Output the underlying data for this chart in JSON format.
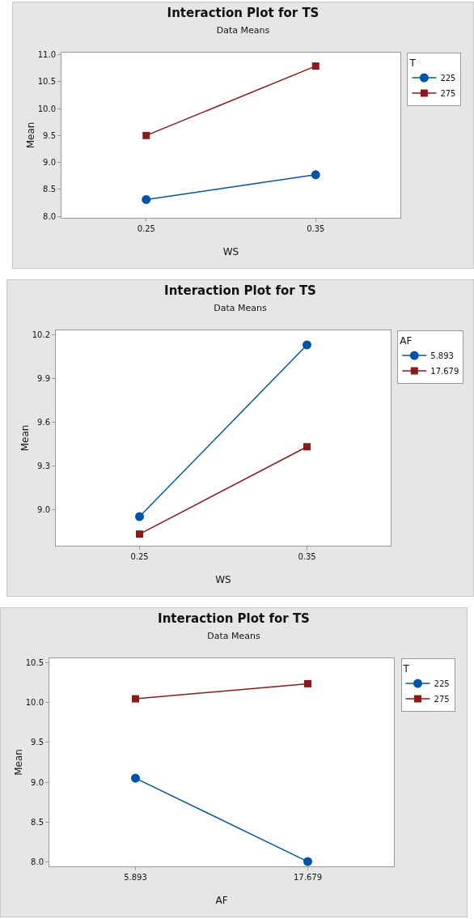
{
  "chart_data": [
    {
      "type": "line",
      "title": "Interaction Plot for TS",
      "subtitle": "Data Means",
      "xlabel": "WS",
      "ylabel": "Mean",
      "legend_title": "T",
      "categories": [
        "0.25",
        "0.35"
      ],
      "series": [
        {
          "name": "225",
          "color": "#0054a6",
          "marker": "circle",
          "values": [
            8.31,
            8.77
          ]
        },
        {
          "name": "275",
          "color": "#8b1a1a",
          "marker": "square",
          "values": [
            9.5,
            10.79
          ]
        }
      ],
      "ylim": [
        7.97,
        11.04
      ],
      "yticks": [
        {
          "value": 8,
          "label": "8.0"
        },
        8.5,
        {
          "value": 9,
          "label": "9.0"
        },
        9.5,
        {
          "value": 10,
          "label": "10.0"
        },
        10.5,
        {
          "value": 11,
          "label": "11.0"
        }
      ],
      "grid": false,
      "legend": "top right",
      "line_style": "solid"
    },
    {
      "type": "line",
      "title": "Interaction Plot for TS",
      "subtitle": "Data Means",
      "xlabel": "WS",
      "ylabel": "Mean",
      "legend_title": "AF",
      "categories": [
        "0.25",
        "0.35"
      ],
      "series": [
        {
          "name": "5.893",
          "color": "#0054a6",
          "marker": "circle",
          "values": [
            8.95,
            10.13
          ]
        },
        {
          "name": "17.679",
          "color": "#8b1a1a",
          "marker": "square",
          "values": [
            8.83,
            9.43
          ]
        }
      ],
      "ylim": [
        8.75,
        10.23
      ],
      "yticks": [
        {
          "value": 9,
          "label": "9.0"
        },
        9.3,
        9.6,
        9.9,
        10.2
      ],
      "grid": false,
      "legend": "top right",
      "line_style": "solid"
    },
    {
      "type": "line",
      "title": "Interaction Plot for TS",
      "subtitle": "Data Means",
      "xlabel": "AF",
      "ylabel": "Mean",
      "legend_title": "T",
      "categories": [
        "5.893",
        "17.679"
      ],
      "series": [
        {
          "name": "225",
          "color": "#0054a6",
          "marker": "circle",
          "values": [
            9.05,
            8.0
          ]
        },
        {
          "name": "275",
          "color": "#8b1a1a",
          "marker": "square",
          "values": [
            10.05,
            10.24
          ]
        }
      ],
      "ylim": [
        7.94,
        10.56
      ],
      "yticks": [
        {
          "value": 8,
          "label": "8.0"
        },
        8.5,
        {
          "value": 9,
          "label": "9.0"
        },
        9.5,
        {
          "value": 10,
          "label": "10.0"
        },
        10.5
      ],
      "grid": false,
      "legend": "top right",
      "line_style": "solid"
    }
  ]
}
